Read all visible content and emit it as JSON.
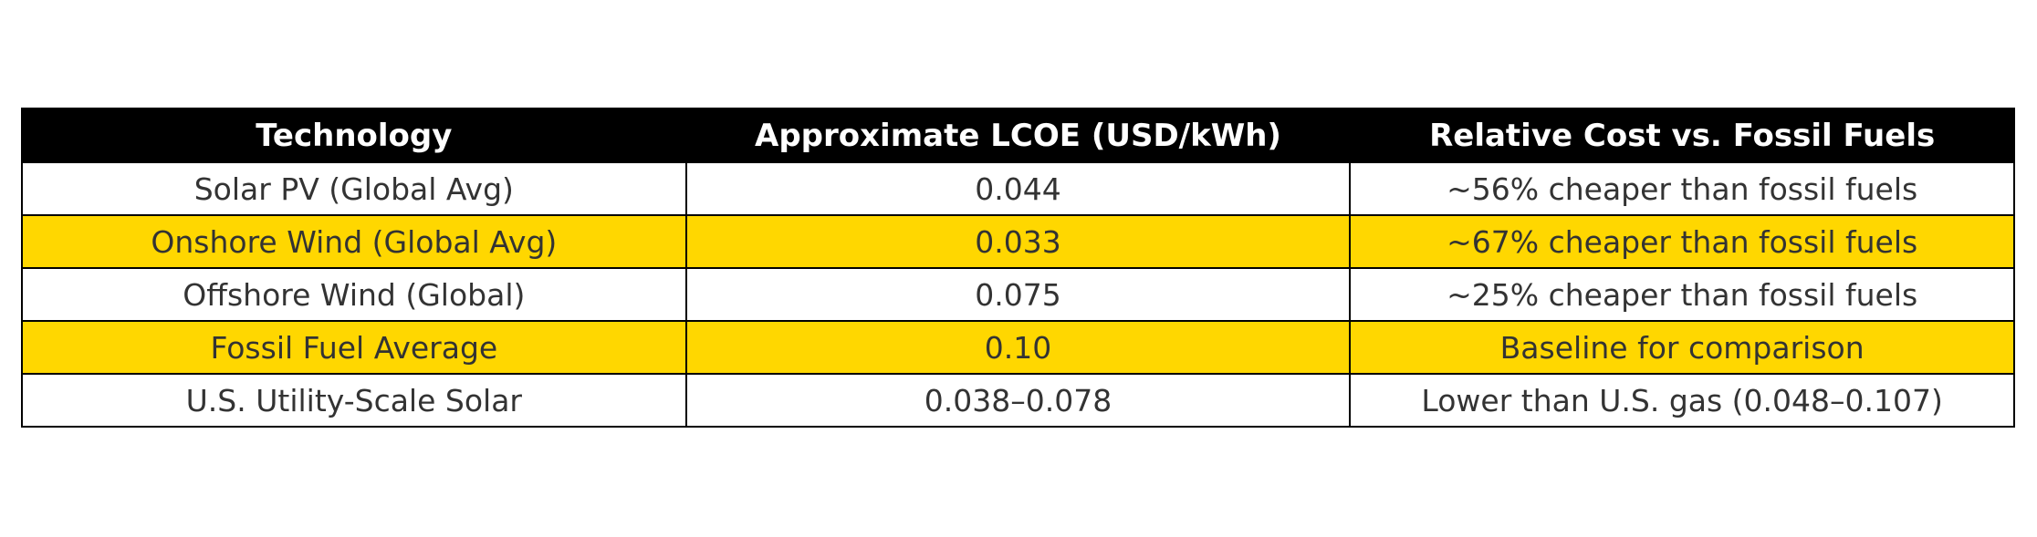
{
  "table": {
    "headers": [
      "Technology",
      "Approximate LCOE (USD/kWh)",
      "Relative Cost vs. Fossil Fuels"
    ],
    "rows": [
      [
        "Solar PV (Global Avg)",
        "0.044",
        "~56% cheaper than fossil fuels"
      ],
      [
        "Onshore Wind (Global Avg)",
        "0.033",
        "~67% cheaper than fossil fuels"
      ],
      [
        "Offshore Wind (Global)",
        "0.075",
        "~25% cheaper than fossil fuels"
      ],
      [
        "Fossil Fuel Average",
        "0.10",
        "Baseline for comparison"
      ],
      [
        "U.S. Utility-Scale Solar",
        "0.038–0.078",
        "Lower than U.S. gas (0.048–0.107)"
      ]
    ],
    "colors": {
      "header_bg": "#000000",
      "header_text": "#FFFFFF",
      "alt_row_bg": "#FFD700",
      "row_bg": "#FFFFFF",
      "text": "#333333"
    }
  }
}
